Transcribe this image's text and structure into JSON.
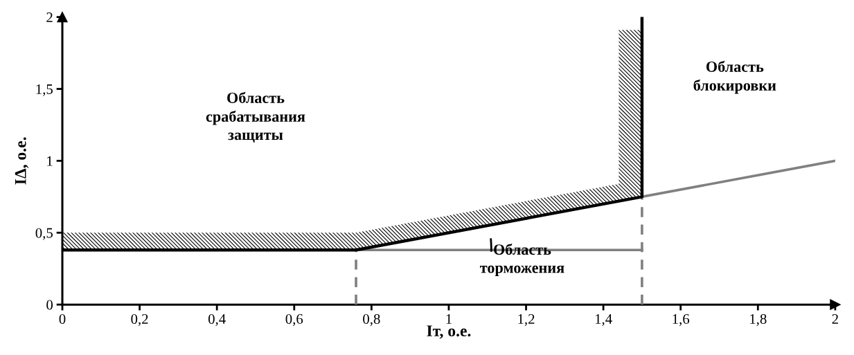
{
  "chart_data": {
    "type": "line",
    "xlabel": "Iт, о.е.",
    "ylabel": "IΔ, о.е.",
    "xlim": [
      0,
      2
    ],
    "ylim": [
      0,
      2
    ],
    "xticks": [
      0,
      {
        "value": 0.2,
        "label": "0,2"
      },
      {
        "value": 0.4,
        "label": "0,4"
      },
      {
        "value": 0.6,
        "label": "0,6"
      },
      {
        "value": 0.8,
        "label": "0,8"
      },
      1,
      {
        "value": 1.2,
        "label": "1,2"
      },
      {
        "value": 1.4,
        "label": "1,4"
      },
      {
        "value": 1.6,
        "label": "1,6"
      },
      {
        "value": 1.8,
        "label": "1,8"
      },
      2
    ],
    "yticks": [
      0,
      {
        "value": 0.5,
        "label": "0,5"
      },
      1,
      {
        "value": 1.5,
        "label": "1,5"
      },
      2
    ],
    "grid": false,
    "marker": "none",
    "series": [
      {
        "color": "#808080",
        "x": [
          0.76,
          1.5
        ],
        "values": [
          0.38,
          0.38
        ]
      },
      {
        "color": "#808080",
        "x": [
          1.5,
          2
        ],
        "values": [
          0.75,
          1.0
        ]
      },
      {
        "color": "#808080",
        "line_style": "dashed",
        "x": [
          0.76,
          0.76
        ],
        "values": [
          0,
          0.38
        ]
      },
      {
        "color": "#808080",
        "line_style": "dashed",
        "x": [
          1.5,
          1.5
        ],
        "values": [
          0,
          0.75
        ]
      },
      {
        "color": "#000000",
        "x": [
          0,
          0.76,
          1.5,
          1.5
        ],
        "values": [
          0.38,
          0.38,
          0.75,
          2
        ]
      }
    ],
    "annotations": [
      "Область\nсрабатывания\nзащиты",
      "Область\nблокировки",
      "Область\nторможения"
    ]
  }
}
